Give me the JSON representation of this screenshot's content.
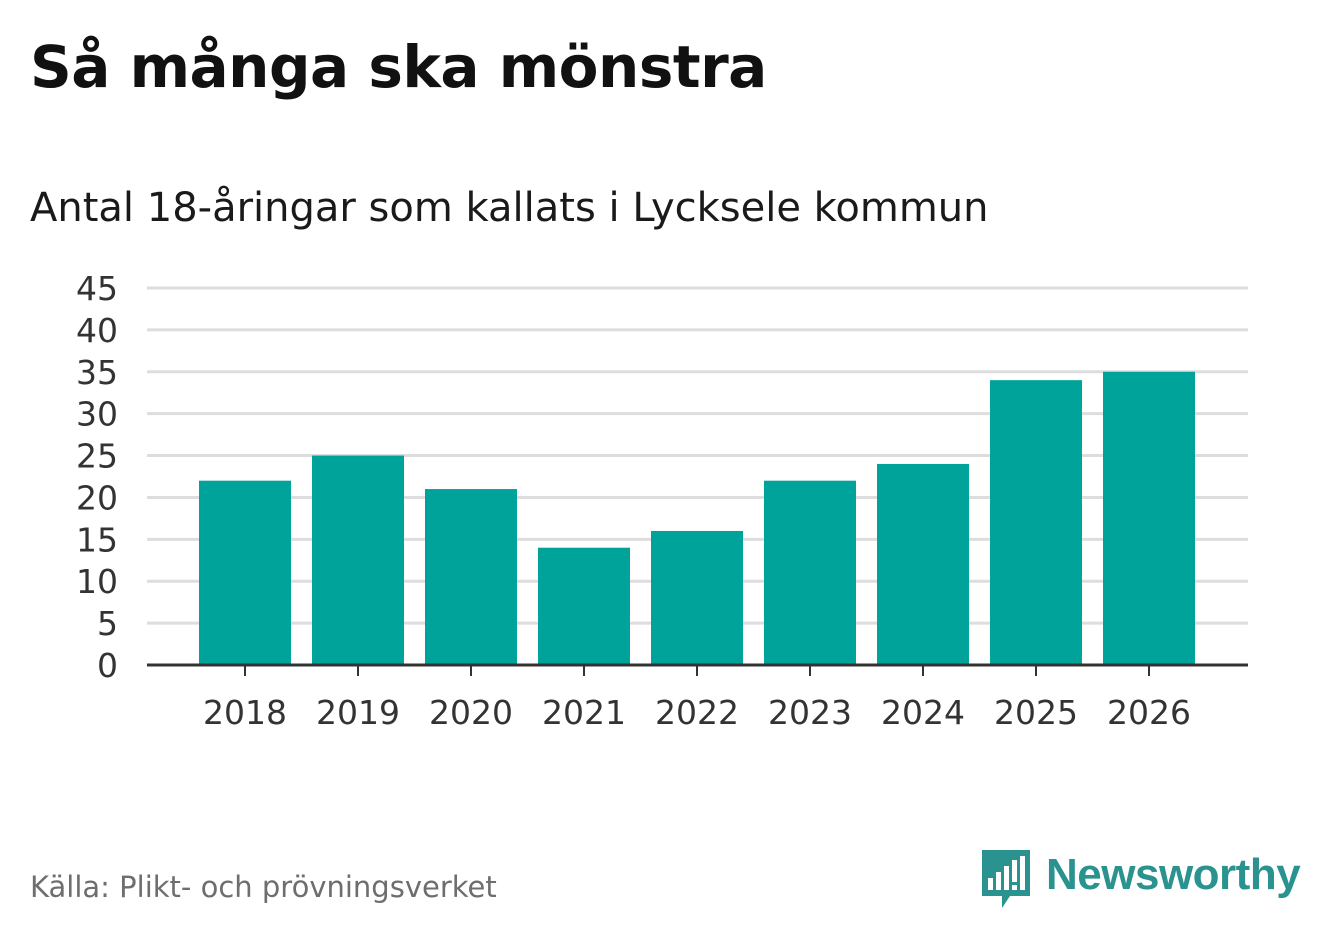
{
  "header": {
    "title": "Så många ska mönstra",
    "subtitle": "Antal 18-åringar som kallats i Lycksele kommun"
  },
  "footer": {
    "source": "Källa: Plikt- och prövningsverket",
    "brand": "Newsworthy",
    "brand_icon": "bar-chart-speech-bubble-icon"
  },
  "colors": {
    "bar": "#00a39a",
    "grid": "#dddddd",
    "axis": "#333333",
    "brand": "#2a938f"
  },
  "chart_data": {
    "type": "bar",
    "title": "Så många ska mönstra",
    "subtitle": "Antal 18-åringar som kallats i Lycksele kommun",
    "xlabel": "",
    "ylabel": "",
    "categories": [
      "2018",
      "2019",
      "2020",
      "2021",
      "2022",
      "2023",
      "2024",
      "2025",
      "2026"
    ],
    "values": [
      22,
      25,
      21,
      14,
      16,
      22,
      24,
      34,
      35
    ],
    "ylim": [
      0,
      45
    ],
    "yticks": [
      0,
      5,
      10,
      15,
      20,
      25,
      30,
      35,
      40,
      45
    ],
    "grid": true,
    "legend": "none"
  }
}
